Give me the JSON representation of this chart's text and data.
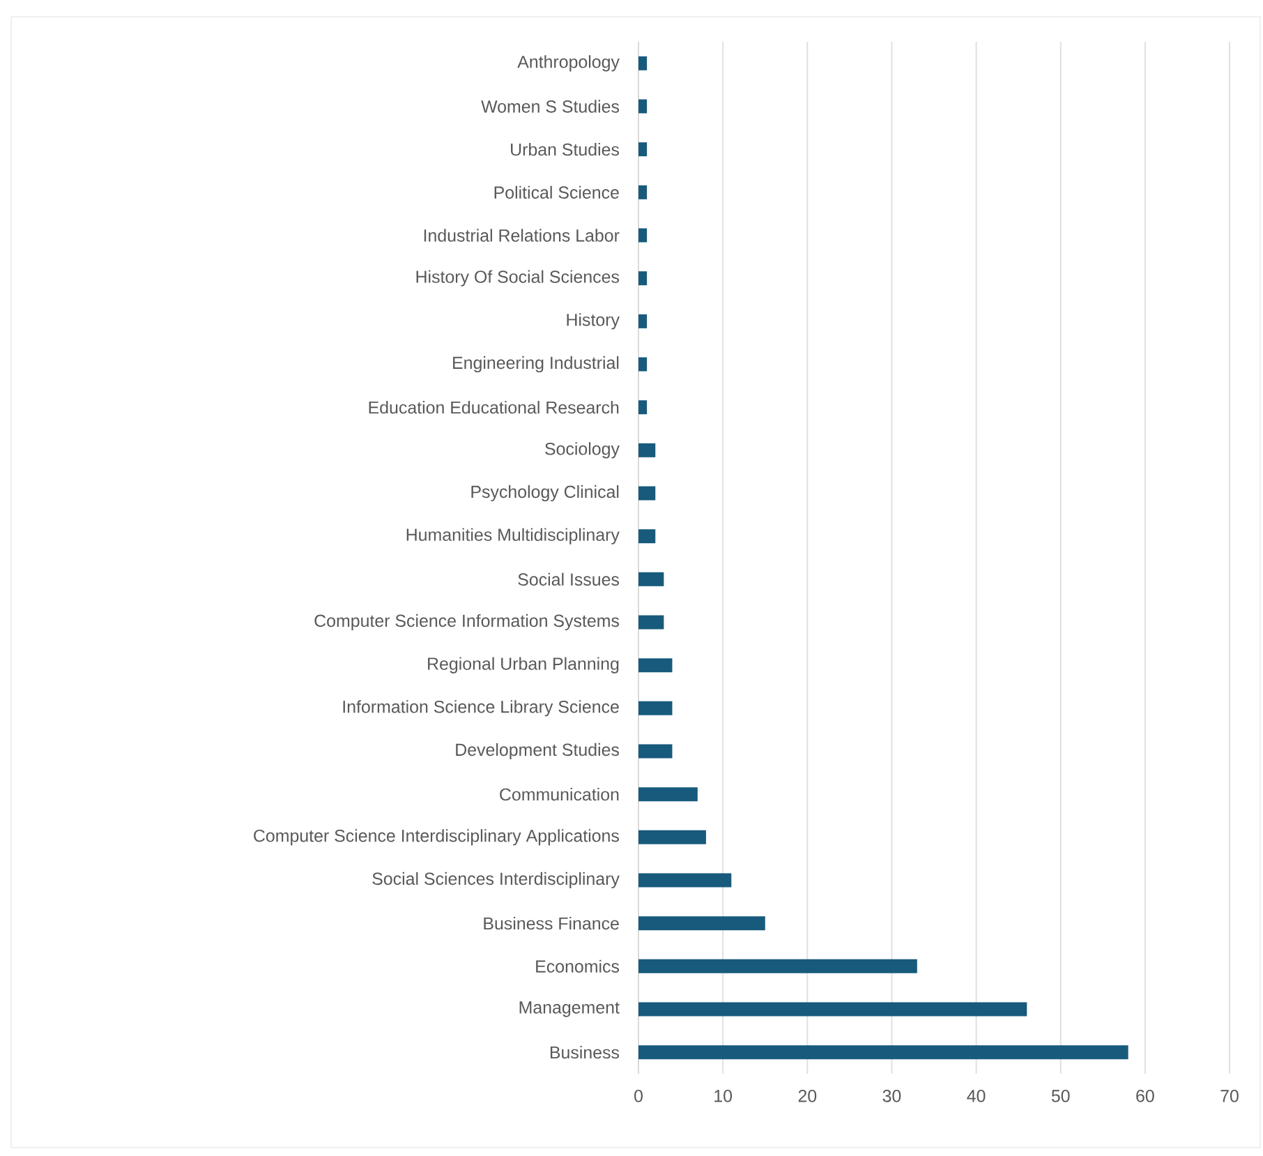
{
  "chart_data": {
    "type": "bar",
    "orientation": "horizontal",
    "color": "#175a7c",
    "grid": "x",
    "categories": [
      "Anthropology",
      "Women S Studies",
      "Urban Studies",
      "Political Science",
      "Industrial Relations Labor",
      "History Of Social Sciences",
      "History",
      "Engineering Industrial",
      "Education Educational Research",
      "Sociology",
      "Psychology Clinical",
      "Humanities Multidisciplinary",
      "Social Issues",
      "Computer Science Information Systems",
      "Regional Urban Planning",
      "Information Science Library Science",
      "Development Studies",
      "Communication",
      "Computer Science Interdisciplinary Applications",
      "Social Sciences Interdisciplinary",
      "Business Finance",
      "Economics",
      "Management",
      "Business"
    ],
    "values": [
      1,
      1,
      1,
      1,
      1,
      1,
      1,
      1,
      1,
      2,
      2,
      2,
      3,
      3,
      4,
      4,
      4,
      7,
      8,
      11,
      15,
      33,
      46,
      58
    ],
    "xlim": [
      0,
      70
    ],
    "xticks": [
      0,
      10,
      20,
      30,
      40,
      50,
      60,
      70
    ]
  }
}
